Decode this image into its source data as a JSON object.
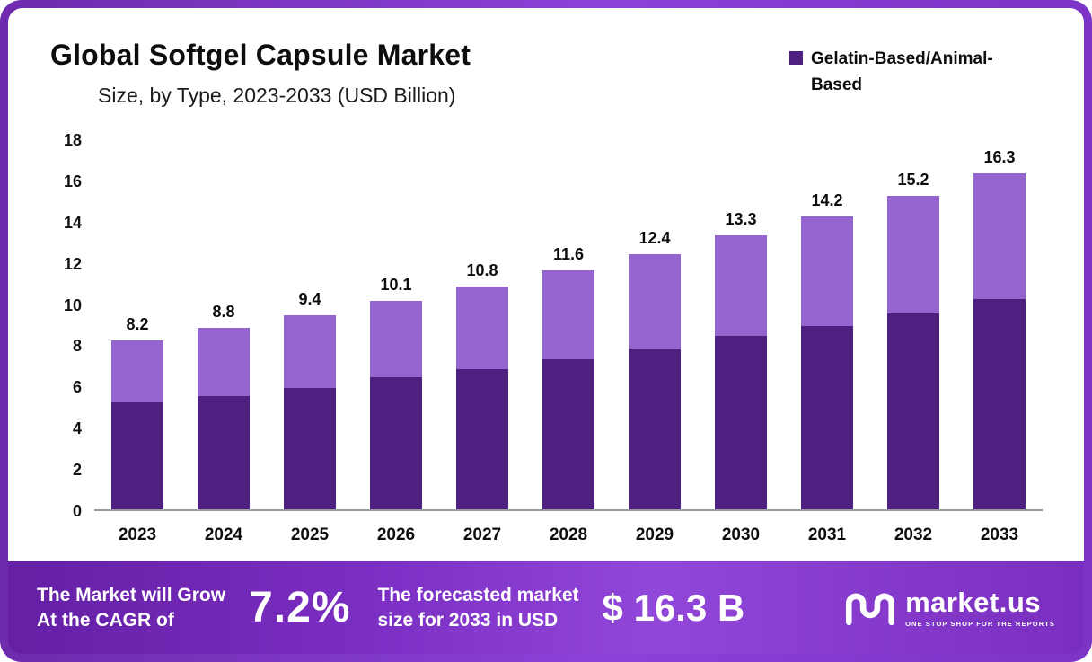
{
  "page": {
    "title": "Global Softgel Capsule Market",
    "subtitle": "Size, by Type, 2023-2033 (USD Billion)"
  },
  "legend": {
    "label": "Gelatin-Based/Animal-Based",
    "swatch_color": "#4e2080"
  },
  "chart_data": {
    "type": "bar",
    "stacked": true,
    "title": "Global Softgel Capsule Market",
    "subtitle": "Size, by Type, 2023-2033 (USD Billion)",
    "categories": [
      "2023",
      "2024",
      "2025",
      "2026",
      "2027",
      "2028",
      "2029",
      "2030",
      "2031",
      "2032",
      "2033"
    ],
    "totals": [
      8.2,
      8.8,
      9.4,
      10.1,
      10.8,
      11.6,
      12.4,
      13.3,
      14.2,
      15.2,
      16.3
    ],
    "series": [
      {
        "name": "Gelatin-Based/Animal-Based",
        "color": "#4e2080",
        "values": [
          5.2,
          5.5,
          5.9,
          6.4,
          6.8,
          7.3,
          7.8,
          8.4,
          8.9,
          9.5,
          10.2
        ]
      },
      {
        "name": "(unlabeled upper segment)",
        "color": "#9565cf",
        "values": [
          3.0,
          3.3,
          3.5,
          3.7,
          4.0,
          4.3,
          4.6,
          4.9,
          5.3,
          5.7,
          6.1
        ]
      }
    ],
    "xlabel": "",
    "ylabel": "",
    "ylim": [
      0,
      18
    ],
    "ytick_step": 2,
    "grid": false,
    "legend_position": "top-right",
    "value_labels": "totals above bars, one decimal"
  },
  "banner": {
    "cagr_label_line1": "The Market will Grow",
    "cagr_label_line2": "At the CAGR of",
    "cagr_value": "7.2%",
    "forecast_label_line1": "The forecasted market",
    "forecast_label_line2": "size for 2033 in USD",
    "forecast_value": "$ 16.3 B",
    "logo_text": "market.us",
    "logo_tagline": "ONE STOP SHOP FOR THE REPORTS"
  },
  "colors": {
    "frame_purple": "#8b42d8",
    "bar_dark": "#4e2080",
    "bar_light": "#9565cf",
    "banner_gradient_left": "#641fa4",
    "banner_gradient_right": "#9147d9",
    "axis_line": "#9b9b9b",
    "text": "#0d0d0d"
  }
}
